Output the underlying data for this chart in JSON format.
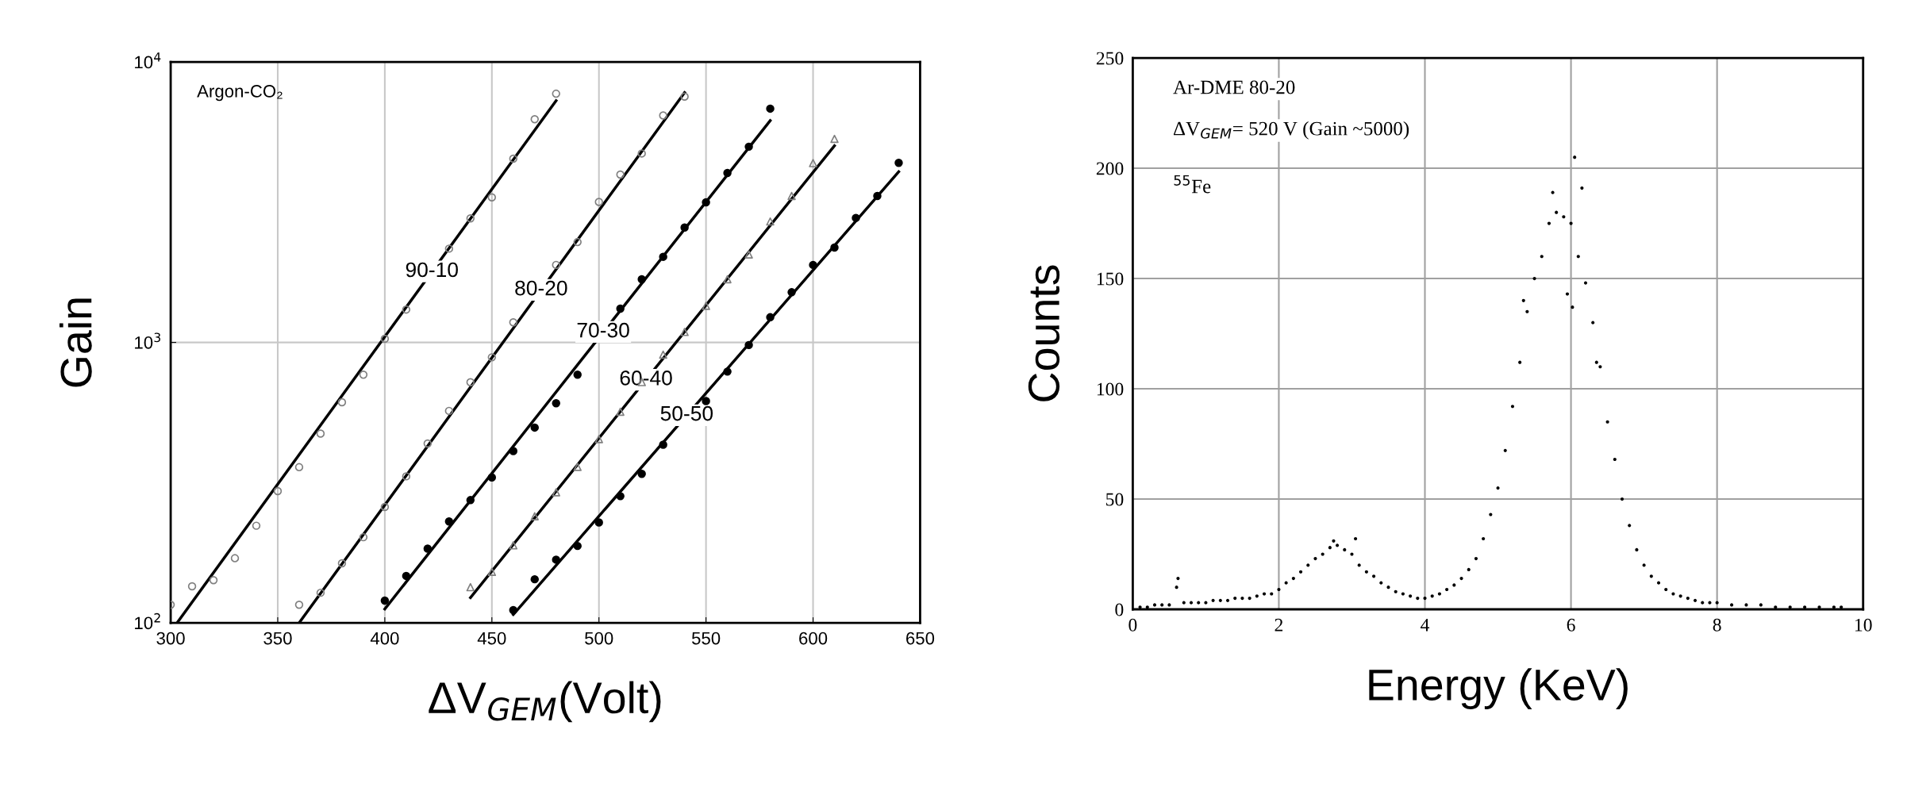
{
  "chart_data": [
    {
      "type": "scatter",
      "xlabel": "ΔV$_{GEM}$(Volt)",
      "ylabel": "Gain",
      "log": "y",
      "grid": true,
      "xlim": [
        300,
        650
      ],
      "xticks": [
        300,
        350,
        400,
        450,
        500,
        550,
        600,
        650
      ],
      "ylim": [
        100,
        10000
      ],
      "yticks": [
        {
          "value": 100,
          "label": "10$^{2}$"
        },
        {
          "value": 1000,
          "label": "10$^{3}$"
        },
        {
          "value": 10000,
          "label": "10$^{4}$"
        }
      ],
      "annotations": [
        "Argon-CO₂",
        {
          "text": "90-10",
          "x": 422,
          "y": 1790
        },
        {
          "text": "80-20",
          "x": 473,
          "y": 1540
        },
        {
          "text": "70-30",
          "x": 502,
          "y": 1090
        },
        {
          "text": "60-40",
          "x": 522,
          "y": 736
        },
        {
          "text": "50-50",
          "x": 541,
          "y": 550
        }
      ],
      "series": [
        {
          "type": "scatter",
          "marker": "circle",
          "color": "#808080",
          "x": [
            300,
            310,
            320,
            330,
            340,
            350,
            360,
            370,
            380,
            390,
            400,
            410,
            430,
            440,
            450,
            460,
            470,
            480
          ],
          "values": [
            116,
            135,
            142,
            170,
            222,
            295,
            359,
            473,
            612,
            767,
            1030,
            1310,
            2160,
            2770,
            3290,
            4520,
            6250,
            7710
          ]
        },
        {
          "type": "line",
          "marker": "none",
          "color": "#000000",
          "x": [
            303,
            480
          ],
          "values": [
            100,
            7280
          ]
        },
        {
          "type": "scatter",
          "marker": "circle",
          "color": "#808080",
          "x": [
            360,
            370,
            380,
            390,
            400,
            410,
            420,
            430,
            440,
            450,
            460,
            480,
            490,
            500,
            510,
            520,
            530,
            540
          ],
          "values": [
            116,
            128,
            163,
            202,
            259,
            333,
            436,
            570,
            721,
            885,
            1180,
            1890,
            2280,
            3170,
            3970,
            4720,
            6450,
            7530
          ]
        },
        {
          "type": "line",
          "marker": "none",
          "color": "#000000",
          "x": [
            360,
            540
          ],
          "values": [
            100,
            7780
          ]
        },
        {
          "type": "scatter",
          "marker": "circle",
          "color": "#000000",
          "x": [
            400,
            410,
            420,
            430,
            440,
            450,
            460,
            470,
            480,
            490,
            510,
            520,
            530,
            540,
            550,
            560,
            570,
            580
          ],
          "values": [
            120,
            147,
            184,
            230,
            274,
            330,
            410,
            497,
            607,
            767,
            1320,
            1680,
            2020,
            2570,
            3160,
            4020,
            4990,
            6820
          ]
        },
        {
          "type": "line",
          "marker": "none",
          "color": "#000000",
          "x": [
            400,
            580
          ],
          "values": [
            112,
            6180
          ]
        },
        {
          "type": "scatter",
          "marker": "triangle",
          "color": "#808080",
          "x": [
            440,
            450,
            460,
            470,
            480,
            490,
            500,
            510,
            520,
            530,
            540,
            550,
            560,
            570,
            580,
            590,
            600,
            610
          ],
          "values": [
            134,
            152,
            189,
            240,
            292,
            360,
            452,
            566,
            722,
            905,
            1090,
            1350,
            1680,
            2060,
            2700,
            3330,
            4360,
            5320
          ]
        },
        {
          "type": "line",
          "marker": "none",
          "color": "#000000",
          "x": [
            440,
            610
          ],
          "values": [
            123,
            5030
          ]
        },
        {
          "type": "scatter",
          "marker": "circle",
          "color": "#000000",
          "x": [
            460,
            470,
            480,
            490,
            500,
            510,
            520,
            530,
            550,
            560,
            570,
            580,
            590,
            600,
            610,
            620,
            630,
            640
          ],
          "values": [
            111,
            143,
            168,
            188,
            228,
            283,
            340,
            432,
            618,
            787,
            979,
            1230,
            1510,
            1890,
            2180,
            2780,
            3330,
            4370
          ]
        },
        {
          "type": "line",
          "marker": "none",
          "color": "#000000",
          "x": [
            460,
            640
          ],
          "values": [
            107,
            4060
          ]
        }
      ]
    },
    {
      "type": "scatter",
      "xlabel": "Energy (KeV)",
      "ylabel": "Counts",
      "grid": true,
      "marker": "circle",
      "xlim": [
        0,
        10
      ],
      "xticks": [
        0,
        2,
        4,
        6,
        8,
        10
      ],
      "ylim": [
        0,
        250
      ],
      "yticks": [
        0,
        50,
        100,
        150,
        200,
        250
      ],
      "annotations": [
        "Ar-DME 80-20",
        "ΔV$_{GEM}$= 520 V (Gain ~5000)",
        "$^{55}$Fe"
      ],
      "series": [
        {
          "color": "#000000",
          "x": [
            0.1,
            0.2,
            0.3,
            0.4,
            0.5,
            0.6,
            0.62,
            0.7,
            0.8,
            0.9,
            1.0,
            1.1,
            1.2,
            1.3,
            1.4,
            1.5,
            1.6,
            1.7,
            1.8,
            1.9,
            2.0,
            2.1,
            2.2,
            2.3,
            2.4,
            2.5,
            2.6,
            2.7,
            2.75,
            2.8,
            2.9,
            3.0,
            3.05,
            3.1,
            3.2,
            3.3,
            3.4,
            3.5,
            3.6,
            3.7,
            3.8,
            3.9,
            4.0,
            4.1,
            4.2,
            4.3,
            4.4,
            4.5,
            4.6,
            4.7,
            4.8,
            4.9,
            5.0,
            5.1,
            5.2,
            5.3,
            5.35,
            5.4,
            5.5,
            5.6,
            5.7,
            5.75,
            5.8,
            5.9,
            5.95,
            6.0,
            6.02,
            6.05,
            6.1,
            6.15,
            6.2,
            6.3,
            6.35,
            6.4,
            6.5,
            6.6,
            6.7,
            6.8,
            6.9,
            7.0,
            7.1,
            7.2,
            7.3,
            7.4,
            7.5,
            7.6,
            7.7,
            7.8,
            7.9,
            8.0,
            8.2,
            8.4,
            8.6,
            8.8,
            9.0,
            9.2,
            9.4,
            9.6,
            9.7
          ],
          "values": [
            1,
            1,
            2,
            2,
            2,
            10,
            14,
            3,
            3,
            3,
            3,
            4,
            4,
            4,
            5,
            5,
            5,
            6,
            7,
            7,
            9,
            12,
            14,
            17,
            20,
            23,
            25,
            28,
            31,
            29,
            27,
            25,
            32,
            20,
            17,
            15,
            12,
            10,
            8,
            7,
            6,
            5,
            5,
            6,
            7,
            9,
            11,
            14,
            18,
            23,
            32,
            43,
            55,
            72,
            92,
            112,
            140,
            135,
            150,
            160,
            175,
            189,
            180,
            178,
            143,
            175,
            137,
            205,
            160,
            191,
            148,
            130,
            112,
            110,
            85,
            68,
            50,
            38,
            27,
            20,
            15,
            12,
            9,
            7,
            6,
            5,
            4,
            3,
            3,
            3,
            2,
            2,
            2,
            1,
            1,
            1,
            1,
            1,
            1
          ]
        }
      ]
    }
  ]
}
